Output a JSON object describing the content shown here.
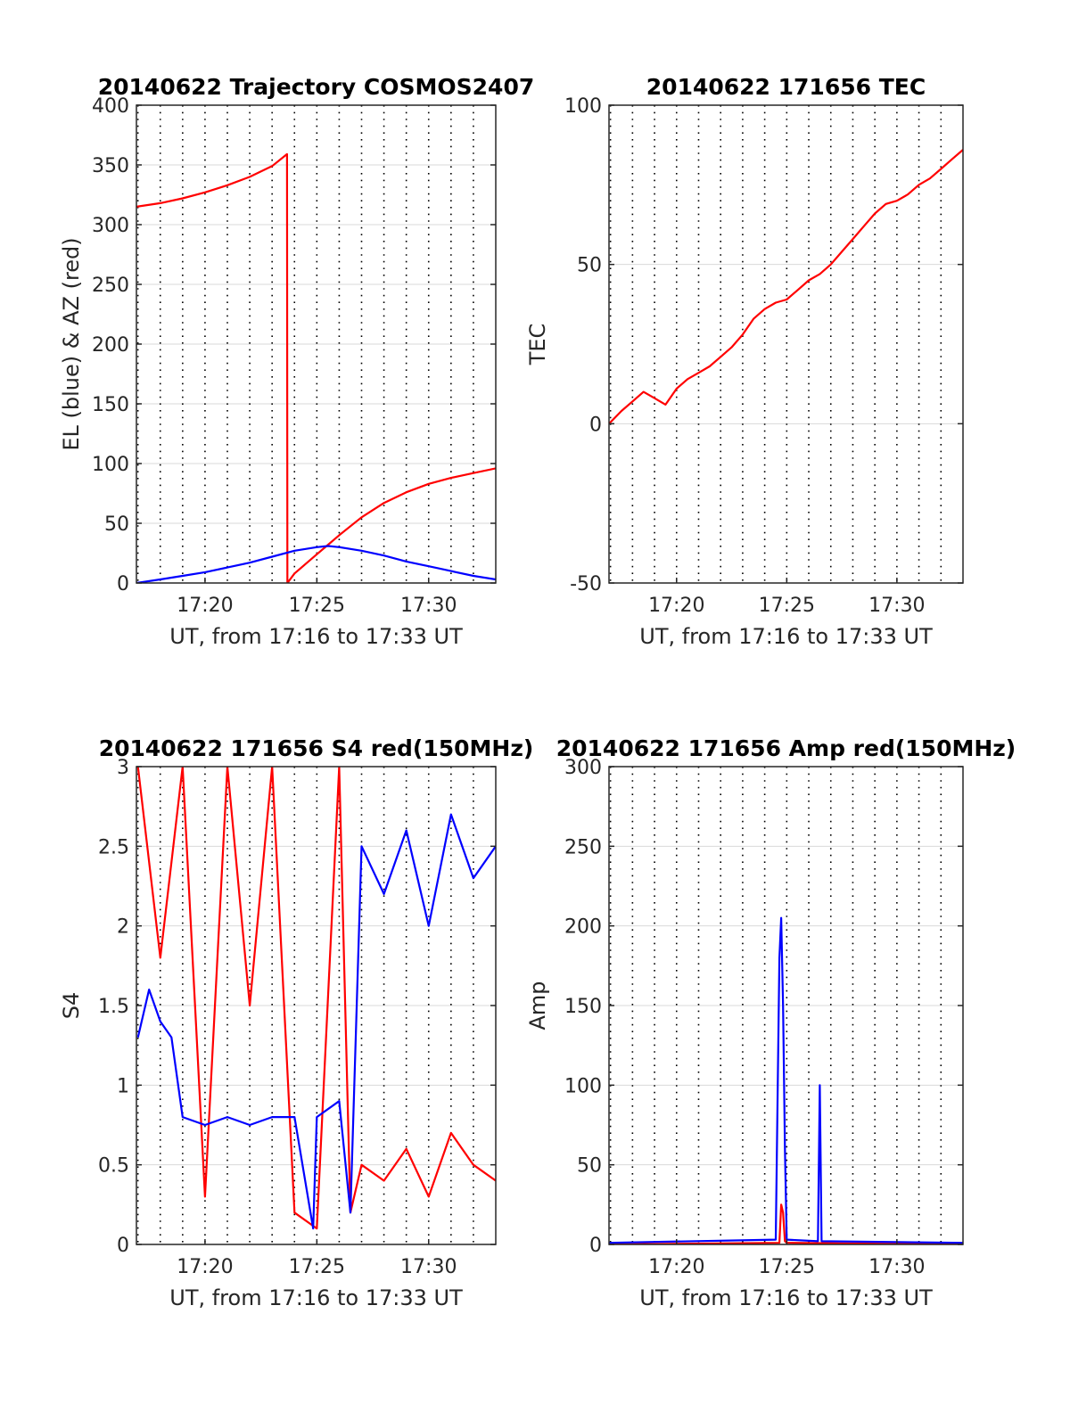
{
  "colors": {
    "az": "#ff0000",
    "el": "#0000ff",
    "red_150mhz": "#ff0000",
    "blue_series": "#0000ff",
    "tec": "#ff0000",
    "grid_solid": "#d9d9d9",
    "grid_dotted": "#000000"
  },
  "chart_data": [
    {
      "type": "line",
      "title": "20140622 Trajectory COSMOS2407",
      "xlabel": "UT, from 17:16 to 17:33 UT",
      "ylabel": "EL (blue) & AZ (red)",
      "xlim": [
        "17:16:56",
        "17:33:00"
      ],
      "ylim": [
        0,
        400
      ],
      "yticks": [
        0,
        50,
        100,
        150,
        200,
        250,
        300,
        350,
        400
      ],
      "xticks": [
        "17:20",
        "17:25",
        "17:30"
      ],
      "grid": "solid horizontal at y ticks; dotted vertical every minute",
      "series": [
        {
          "color": "#ff0000",
          "x": [
            "17:16:56",
            "17:18:00",
            "17:19:00",
            "17:20:00",
            "17:21:00",
            "17:22:00",
            "17:23:00",
            "17:23:40",
            "17:23:41",
            "17:24:00",
            "17:24:30",
            "17:25:00",
            "17:25:30",
            "17:26:00",
            "17:27:00",
            "17:28:00",
            "17:29:00",
            "17:30:00",
            "17:31:00",
            "17:32:00",
            "17:33:00"
          ],
          "values": [
            315,
            318,
            322,
            327,
            333,
            340,
            349,
            359,
            0,
            8,
            16,
            24,
            32,
            40,
            55,
            67,
            76,
            83,
            88,
            92,
            96
          ]
        },
        {
          "color": "#0000ff",
          "x": [
            "17:16:56",
            "17:18:00",
            "17:19:00",
            "17:20:00",
            "17:21:00",
            "17:22:00",
            "17:23:00",
            "17:24:00",
            "17:25:00",
            "17:25:30",
            "17:26:00",
            "17:27:00",
            "17:28:00",
            "17:29:00",
            "17:30:00",
            "17:31:00",
            "17:32:00",
            "17:33:00"
          ],
          "values": [
            0,
            3,
            6,
            9,
            13,
            17,
            22,
            27,
            30,
            31,
            30,
            27,
            23,
            18,
            14,
            10,
            6,
            3
          ]
        }
      ]
    },
    {
      "type": "line",
      "title": "20140622 171656 TEC",
      "xlabel": "UT, from 17:16 to 17:33 UT",
      "ylabel": "TEC",
      "xlim": [
        "17:16:56",
        "17:33:00"
      ],
      "ylim": [
        -50,
        100
      ],
      "yticks": [
        -50,
        0,
        50,
        100
      ],
      "xticks": [
        "17:20",
        "17:25",
        "17:30"
      ],
      "grid": "solid horizontal at y ticks; dotted vertical every minute",
      "series": [
        {
          "color": "#ff0000",
          "x": [
            "17:16:56",
            "17:17:30",
            "17:18:00",
            "17:18:30",
            "17:19:00",
            "17:19:30",
            "17:20:00",
            "17:20:30",
            "17:21:00",
            "17:21:30",
            "17:22:00",
            "17:22:30",
            "17:23:00",
            "17:23:30",
            "17:24:00",
            "17:24:30",
            "17:25:00",
            "17:25:30",
            "17:26:00",
            "17:26:30",
            "17:27:00",
            "17:27:30",
            "17:28:00",
            "17:28:30",
            "17:29:00",
            "17:29:30",
            "17:30:00",
            "17:30:30",
            "17:31:00",
            "17:31:30",
            "17:32:00",
            "17:32:30",
            "17:33:00"
          ],
          "values": [
            0,
            4,
            7,
            10,
            8,
            6,
            11,
            14,
            16,
            18,
            21,
            24,
            28,
            33,
            36,
            38,
            39,
            42,
            45,
            47,
            50,
            54,
            58,
            62,
            66,
            69,
            70,
            72,
            75,
            77,
            80,
            83,
            86
          ]
        }
      ]
    },
    {
      "type": "line",
      "title": "20140622 171656 S4 red(150MHz)",
      "xlabel": "UT, from 17:16 to 17:33 UT",
      "ylabel": "S4",
      "xlim": [
        "17:16:56",
        "17:33:00"
      ],
      "ylim": [
        0,
        3
      ],
      "yticks": [
        0,
        0.5,
        1,
        1.5,
        2,
        2.5,
        3
      ],
      "xticks": [
        "17:20",
        "17:25",
        "17:30"
      ],
      "grid": "solid horizontal at y ticks; dotted vertical every minute",
      "series": [
        {
          "color": "#ff0000",
          "x": [
            "17:17:00",
            "17:18:00",
            "17:19:00",
            "17:20:00",
            "17:21:00",
            "17:22:00",
            "17:23:00",
            "17:24:00",
            "17:25:00",
            "17:26:00",
            "17:26:30",
            "17:27:00",
            "17:28:00",
            "17:29:00",
            "17:30:00",
            "17:31:00",
            "17:32:00",
            "17:33:00"
          ],
          "values": [
            3,
            1.8,
            3,
            0.3,
            3,
            1.5,
            3,
            0.2,
            0.1,
            3,
            0.2,
            0.5,
            0.4,
            0.6,
            0.3,
            0.7,
            0.5,
            0.4
          ]
        },
        {
          "color": "#0000ff",
          "x": [
            "17:17:00",
            "17:17:30",
            "17:18:00",
            "17:18:30",
            "17:19:00",
            "17:20:00",
            "17:21:00",
            "17:22:00",
            "17:23:00",
            "17:24:00",
            "17:24:50",
            "17:25:00",
            "17:26:00",
            "17:26:30",
            "17:27:00",
            "17:28:00",
            "17:29:00",
            "17:30:00",
            "17:31:00",
            "17:32:00",
            "17:33:00"
          ],
          "values": [
            1.3,
            1.6,
            1.4,
            1.3,
            0.8,
            0.75,
            0.8,
            0.75,
            0.8,
            0.8,
            0.1,
            0.8,
            0.9,
            0.2,
            2.5,
            2.2,
            2.6,
            2.0,
            2.7,
            2.3,
            2.5
          ]
        }
      ]
    },
    {
      "type": "line",
      "title": "20140622 171656 Amp red(150MHz)",
      "xlabel": "UT, from 17:16 to 17:33 UT",
      "ylabel": "Amp",
      "xlim": [
        "17:16:56",
        "17:33:00"
      ],
      "ylim": [
        0,
        300
      ],
      "yticks": [
        0,
        50,
        100,
        150,
        200,
        250,
        300
      ],
      "xticks": [
        "17:20",
        "17:25",
        "17:30"
      ],
      "grid": "solid horizontal at y ticks; dotted vertical every minute",
      "series": [
        {
          "color": "#ff0000",
          "x": [
            "17:16:56",
            "17:24:40",
            "17:24:45",
            "17:24:50",
            "17:24:55",
            "17:25:00",
            "17:33:00"
          ],
          "values": [
            0,
            1,
            25,
            20,
            2,
            1,
            0
          ]
        },
        {
          "color": "#0000ff",
          "x": [
            "17:16:56",
            "17:24:30",
            "17:24:40",
            "17:24:45",
            "17:24:50",
            "17:24:55",
            "17:25:00",
            "17:26:25",
            "17:26:30",
            "17:26:35",
            "17:33:00"
          ],
          "values": [
            1,
            3,
            180,
            205,
            150,
            60,
            3,
            2,
            100,
            2,
            1
          ]
        }
      ]
    }
  ]
}
